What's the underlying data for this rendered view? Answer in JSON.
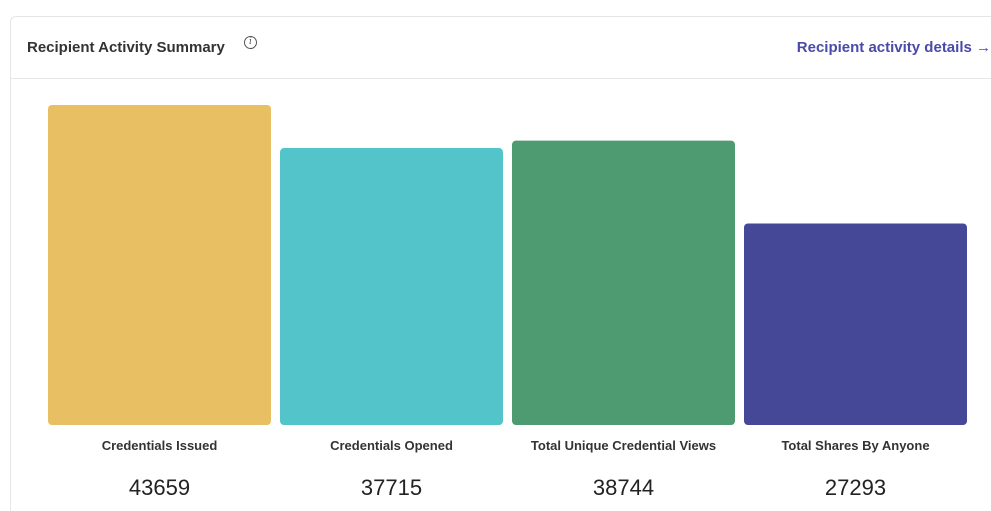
{
  "card": {
    "title": "Recipient Activity Summary",
    "info_icon": "info-icon",
    "details_link": "Recipient activity details →"
  },
  "colors": {
    "link": "#4a4aa8",
    "bars": [
      "#e8bf62",
      "#52c4ca",
      "#4e9b72",
      "#454897"
    ]
  },
  "chart_data": {
    "type": "bar",
    "title": "Recipient Activity Summary",
    "categories": [
      "Credentials Issued",
      "Credentials Opened",
      "Total Unique Credential Views",
      "Total Shares By Anyone"
    ],
    "values": [
      43659,
      37715,
      38744,
      27293
    ],
    "value_labels": [
      "43659",
      "37715",
      "38744",
      "27293"
    ],
    "xlabel": "",
    "ylabel": "",
    "grid": false,
    "legend": "none"
  }
}
